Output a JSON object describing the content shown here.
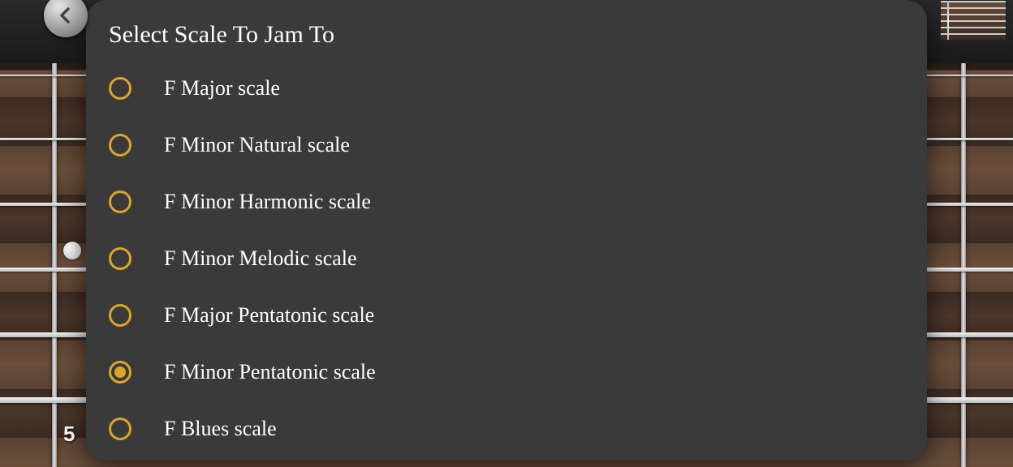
{
  "background": {
    "fret_number_visible": "5"
  },
  "back_button": {
    "aria": "Back"
  },
  "modal": {
    "title": "Select Scale To Jam To",
    "radio_color": "#d9a628",
    "options": [
      {
        "label": "F Major scale",
        "selected": false
      },
      {
        "label": "F Minor Natural scale",
        "selected": false
      },
      {
        "label": "F Minor Harmonic scale",
        "selected": false
      },
      {
        "label": "F Minor Melodic scale",
        "selected": false
      },
      {
        "label": "F Major Pentatonic scale",
        "selected": false
      },
      {
        "label": "F Minor Pentatonic scale",
        "selected": true
      },
      {
        "label": "F Blues scale",
        "selected": false
      }
    ]
  }
}
